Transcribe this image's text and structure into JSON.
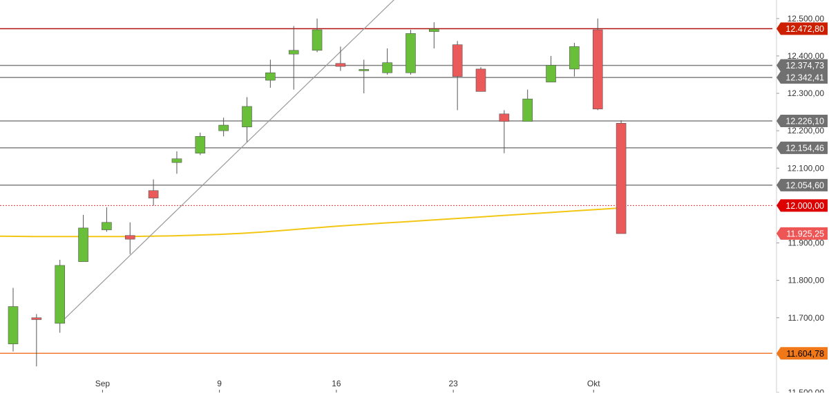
{
  "chart_data": {
    "type": "candlestick",
    "title": "",
    "xlabel": "",
    "ylabel": "",
    "ylim": [
      11500,
      12520
    ],
    "y_ticks": [
      "11.500,00",
      "11.600,00",
      "11.700,00",
      "11.800,00",
      "11.900,00",
      "12.000,00",
      "12.100,00",
      "12.200,00",
      "12.300,00",
      "12.400,00",
      "12.500,00"
    ],
    "y_tick_values": [
      11500,
      11600,
      11700,
      11800,
      11900,
      12000,
      12100,
      12200,
      12300,
      12400,
      12500
    ],
    "x_ticks": [
      {
        "label": "Sep",
        "index": 4
      },
      {
        "label": "9",
        "index": 9
      },
      {
        "label": "16",
        "index": 14
      },
      {
        "label": "23",
        "index": 19
      },
      {
        "label": "Okt",
        "index": 25
      }
    ],
    "candles": [
      {
        "o": 11630,
        "h": 11780,
        "l": 11610,
        "c": 11730
      },
      {
        "o": 11700,
        "h": 11710,
        "l": 11570,
        "c": 11695
      },
      {
        "o": 11685,
        "h": 11855,
        "l": 11660,
        "c": 11840
      },
      {
        "o": 11850,
        "h": 11975,
        "l": 11850,
        "c": 11940
      },
      {
        "o": 11935,
        "h": 11995,
        "l": 11930,
        "c": 11955
      },
      {
        "o": 11920,
        "h": 11955,
        "l": 11870,
        "c": 11910
      },
      {
        "o": 12040,
        "h": 12070,
        "l": 12000,
        "c": 12020
      },
      {
        "o": 12115,
        "h": 12145,
        "l": 12085,
        "c": 12125
      },
      {
        "o": 12140,
        "h": 12195,
        "l": 12135,
        "c": 12185
      },
      {
        "o": 12200,
        "h": 12235,
        "l": 12185,
        "c": 12215
      },
      {
        "o": 12210,
        "h": 12290,
        "l": 12170,
        "c": 12265
      },
      {
        "o": 12335,
        "h": 12390,
        "l": 12315,
        "c": 12355
      },
      {
        "o": 12405,
        "h": 12480,
        "l": 12310,
        "c": 12415
      },
      {
        "o": 12415,
        "h": 12500,
        "l": 12410,
        "c": 12470
      },
      {
        "o": 12380,
        "h": 12425,
        "l": 12360,
        "c": 12372
      },
      {
        "o": 12362,
        "h": 12390,
        "l": 12300,
        "c": 12364
      },
      {
        "o": 12355,
        "h": 12420,
        "l": 12350,
        "c": 12382
      },
      {
        "o": 12355,
        "h": 12470,
        "l": 12350,
        "c": 12460
      },
      {
        "o": 12465,
        "h": 12490,
        "l": 12420,
        "c": 12472
      },
      {
        "o": 12430,
        "h": 12440,
        "l": 12255,
        "c": 12345
      },
      {
        "o": 12365,
        "h": 12370,
        "l": 12305,
        "c": 12305
      },
      {
        "o": 12245,
        "h": 12255,
        "l": 12140,
        "c": 12225
      },
      {
        "o": 12225,
        "h": 12310,
        "l": 12225,
        "c": 12285
      },
      {
        "o": 12330,
        "h": 12400,
        "l": 12330,
        "c": 12375
      },
      {
        "o": 12365,
        "h": 12435,
        "l": 12345,
        "c": 12425
      },
      {
        "o": 12470,
        "h": 12500,
        "l": 12255,
        "c": 12258
      },
      {
        "o": 12220,
        "h": 12228,
        "l": 11925,
        "c": 11925
      }
    ],
    "moving_average": {
      "color": "#f3c613",
      "values": [
        11918,
        11917,
        11917,
        11917,
        11917,
        11917,
        11918,
        11919,
        11921,
        11923,
        11926,
        11930,
        11935,
        11940,
        11945,
        11949,
        11953,
        11957,
        11961,
        11965,
        11969,
        11973,
        11977,
        11981,
        11985,
        11989,
        11993,
        11995
      ]
    },
    "horizontal_levels": [
      {
        "value": 12472.8,
        "label": "12.472,80",
        "color": "#b01010",
        "badge_color": "#cc1f00",
        "text_color": "#ffffff"
      },
      {
        "value": 12374.73,
        "label": "12.374,73",
        "color": "#808080",
        "badge_color": "#707070",
        "text_color": "#ffffff"
      },
      {
        "value": 12342.41,
        "label": "12.342,41",
        "color": "#808080",
        "badge_color": "#707070",
        "text_color": "#ffffff"
      },
      {
        "value": 12226.1,
        "label": "12.226,10",
        "color": "#808080",
        "badge_color": "#707070",
        "text_color": "#ffffff"
      },
      {
        "value": 12154.46,
        "label": "12.154,46",
        "color": "#808080",
        "badge_color": "#707070",
        "text_color": "#ffffff"
      },
      {
        "value": 12054.6,
        "label": "12.054,60",
        "color": "#808080",
        "badge_color": "#707070",
        "text_color": "#ffffff"
      },
      {
        "value": 12000.0,
        "label": "12.000,00",
        "color": "#e03030",
        "dashed": true,
        "badge_color": "#dd0000",
        "text_color": "#ffffff"
      },
      {
        "value": 11604.78,
        "label": "11.604,78",
        "color": "#f07a30",
        "badge_color": "#f07818",
        "text_color": "#000000"
      }
    ],
    "last_price": {
      "value": 11925.25,
      "label": "11.925,25",
      "badge_color": "#ee5555",
      "text_color": "#ffffff"
    },
    "trend_line": {
      "from": {
        "index": 2,
        "value": 11685
      },
      "to": {
        "index": 18.6,
        "value": 12690
      },
      "color": "#999999"
    },
    "colors": {
      "up": "#6abf3a",
      "down": "#ea5a5a",
      "wick": "#555555",
      "axis_text": "#333333"
    }
  }
}
